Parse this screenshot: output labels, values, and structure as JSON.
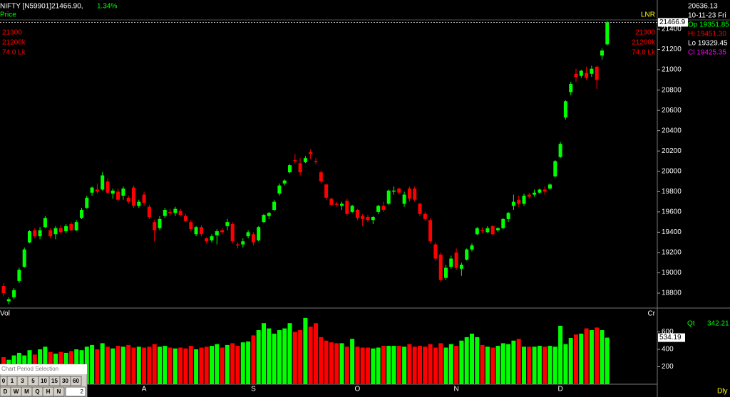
{
  "chart_data": {
    "type": "candlestick",
    "up_color": "#00ff00",
    "down_color": "#ff0000",
    "categories": [
      null,
      null,
      null,
      null,
      null,
      null,
      null,
      null,
      null,
      null,
      null,
      null,
      null,
      null,
      null,
      null,
      null,
      null,
      null,
      null,
      null,
      null,
      null,
      null,
      null,
      null,
      null,
      "A",
      null,
      null,
      null,
      null,
      null,
      null,
      null,
      null,
      null,
      null,
      null,
      null,
      null,
      null,
      null,
      null,
      null,
      null,
      null,
      null,
      "S",
      null,
      null,
      null,
      null,
      null,
      null,
      null,
      null,
      null,
      null,
      null,
      null,
      null,
      null,
      null,
      null,
      null,
      null,
      null,
      "O",
      null,
      null,
      null,
      null,
      null,
      null,
      null,
      null,
      null,
      null,
      null,
      null,
      null,
      null,
      null,
      null,
      null,
      null,
      "N",
      null,
      null,
      null,
      null,
      null,
      null,
      null,
      null,
      null,
      null,
      null,
      null,
      null,
      null,
      null,
      null,
      null,
      null,
      null,
      "D",
      null,
      null,
      null,
      null,
      null,
      null,
      null,
      null,
      null
    ],
    "open": [
      18870,
      18720,
      18760,
      18920,
      19060,
      19300,
      19420,
      19360,
      19450,
      19420,
      19380,
      19440,
      19410,
      19480,
      19420,
      19540,
      19640,
      19790,
      19820,
      19820,
      19900,
      19780,
      19800,
      19760,
      19740,
      19840,
      19660,
      19770,
      19650,
      19500,
      19440,
      19560,
      19600,
      19590,
      19610,
      19560,
      19500,
      19380,
      19450,
      19340,
      19320,
      19370,
      19420,
      19460,
      19480,
      19280,
      19280,
      19360,
      19380,
      19320,
      19500,
      19560,
      19620,
      19780,
      19880,
      19990,
      20110,
      20080,
      20090,
      20190,
      20100,
      19990,
      19870,
      19730,
      19680,
      19660,
      19710,
      19600,
      19620,
      19560,
      19550,
      19520,
      19600,
      19660,
      19680,
      19800,
      19830,
      19680,
      19830,
      19830,
      19680,
      19580,
      19520,
      19280,
      19180,
      18950,
      19060,
      19200,
      19040,
      19130,
      19230,
      19380,
      19420,
      19400,
      19460,
      19420,
      19440,
      19530,
      19660,
      19720,
      19680,
      19770,
      19770,
      19790,
      19820,
      19830,
      19950,
      20140,
      20530,
      20780,
      20960,
      20940,
      20970,
      20960,
      21030,
      21140,
      21250
    ],
    "high": [
      18900,
      18760,
      18850,
      19050,
      19250,
      19420,
      19440,
      19450,
      19560,
      19440,
      19460,
      19470,
      19480,
      19500,
      19520,
      19640,
      19760,
      19850,
      19880,
      19990,
      19930,
      19830,
      19830,
      19850,
      19760,
      19860,
      19720,
      19800,
      19670,
      19520,
      19560,
      19640,
      19630,
      19650,
      19630,
      19580,
      19520,
      19460,
      19470,
      19350,
      19380,
      19430,
      19440,
      19530,
      19500,
      19300,
      19340,
      19420,
      19400,
      19460,
      19580,
      19600,
      19720,
      19880,
      19920,
      20070,
      20170,
      20130,
      20150,
      20220,
      20130,
      20010,
      19880,
      19740,
      19700,
      19700,
      19730,
      19670,
      19630,
      19580,
      19570,
      19560,
      19670,
      19700,
      19820,
      19850,
      19840,
      19800,
      19850,
      19850,
      19690,
      19600,
      19540,
      19300,
      19200,
      19080,
      19170,
      19240,
      19100,
      19240,
      19290,
      19450,
      19450,
      19460,
      19470,
      19450,
      19540,
      19600,
      19770,
      19760,
      19780,
      19790,
      19820,
      19830,
      19850,
      19880,
      20110,
      20290,
      20700,
      20880,
      21010,
      21000,
      21030,
      21040,
      21040,
      21210,
      21480
    ],
    "low": [
      18770,
      18690,
      18740,
      18900,
      19050,
      19290,
      19340,
      19330,
      19440,
      19340,
      19330,
      19380,
      19390,
      19410,
      19410,
      19530,
      19630,
      19760,
      19780,
      19810,
      19780,
      19730,
      19700,
      19720,
      19680,
      19640,
      19640,
      19660,
      19530,
      19310,
      19420,
      19540,
      19560,
      19560,
      19560,
      19500,
      19410,
      19360,
      19360,
      19290,
      19300,
      19280,
      19380,
      19420,
      19290,
      19240,
      19250,
      19340,
      19270,
      19310,
      19490,
      19530,
      19610,
      19760,
      19860,
      19980,
      20080,
      19960,
      20080,
      20120,
      20070,
      19880,
      19720,
      19660,
      19650,
      19620,
      19560,
      19590,
      19520,
      19460,
      19500,
      19480,
      19580,
      19600,
      19670,
      19770,
      19770,
      19650,
      19700,
      19700,
      19560,
      19510,
      19290,
      19120,
      18910,
      18930,
      19040,
      19030,
      18970,
      19120,
      19210,
      19370,
      19390,
      19390,
      19370,
      19400,
      19430,
      19500,
      19620,
      19650,
      19660,
      19730,
      19750,
      19780,
      19770,
      19820,
      19940,
      20130,
      20510,
      20750,
      20880,
      20920,
      20900,
      20930,
      20810,
      21100,
      21240
    ],
    "close": [
      18800,
      18740,
      18830,
      19030,
      19230,
      19410,
      19360,
      19420,
      19540,
      19360,
      19440,
      19400,
      19460,
      19420,
      19500,
      19620,
      19740,
      19840,
      19800,
      19960,
      19790,
      19810,
      19720,
      19830,
      19700,
      19660,
      19700,
      19690,
      19550,
      19420,
      19530,
      19620,
      19590,
      19630,
      19570,
      19510,
      19430,
      19450,
      19380,
      19310,
      19360,
      19410,
      19400,
      19500,
      19310,
      19270,
      19310,
      19400,
      19300,
      19450,
      19570,
      19590,
      19700,
      19860,
      19910,
      20060,
      20100,
      19990,
      20130,
      20170,
      20090,
      19900,
      19740,
      19670,
      19670,
      19680,
      19580,
      19660,
      19540,
      19530,
      19520,
      19550,
      19660,
      19620,
      19810,
      19810,
      19790,
      19770,
      19730,
      19720,
      19580,
      19530,
      19310,
      19140,
      18930,
      19050,
      19140,
      19050,
      19080,
      19230,
      19270,
      19440,
      19410,
      19440,
      19380,
      19440,
      19530,
      19590,
      19700,
      19680,
      19760,
      19750,
      19790,
      19820,
      19800,
      19870,
      20100,
      20270,
      20690,
      20860,
      20930,
      20990,
      20920,
      21010,
      20900,
      21190,
      21466.9
    ],
    "volume": [
      310,
      280,
      330,
      360,
      330,
      390,
      340,
      400,
      430,
      370,
      350,
      370,
      360,
      380,
      400,
      390,
      430,
      450,
      400,
      470,
      430,
      410,
      440,
      430,
      450,
      420,
      430,
      420,
      430,
      460,
      430,
      440,
      420,
      410,
      420,
      410,
      440,
      400,
      420,
      430,
      440,
      460,
      420,
      450,
      470,
      440,
      480,
      490,
      560,
      620,
      700,
      640,
      580,
      620,
      640,
      700,
      600,
      620,
      760,
      660,
      700,
      540,
      500,
      480,
      470,
      470,
      430,
      520,
      430,
      420,
      420,
      410,
      420,
      440,
      440,
      440,
      440,
      430,
      460,
      430,
      440,
      430,
      460,
      420,
      470,
      420,
      460,
      440,
      500,
      540,
      580,
      540,
      450,
      430,
      420,
      440,
      470,
      460,
      500,
      520,
      430,
      430,
      430,
      440,
      430,
      440,
      430,
      670,
      460,
      530,
      570,
      580,
      640,
      620,
      650,
      620,
      534.19
    ],
    "ylim": [
      18660,
      21491
    ],
    "yticks": [
      18800,
      19000,
      19200,
      19400,
      19600,
      19800,
      20000,
      20200,
      20400,
      20600,
      20800,
      21000,
      21200,
      21400
    ],
    "vol_ylim": [
      0,
      857
    ],
    "vol_yticks": [
      200,
      400,
      600
    ],
    "last_price": 21466.9
  },
  "ui": {
    "symbol": "NIFTY [N59901]21466.90,",
    "change": "1.34%",
    "price_label": "Price",
    "left_info": [
      "21300",
      "21200k",
      "74.0 Lk"
    ],
    "right_info": [
      "21300",
      "21200k",
      "74.0 Lk"
    ],
    "lnr": "LNR",
    "info_box": [
      "20636.13",
      "10-11-23 Fri",
      "Op 19351.85",
      "Hi 19451.30",
      "Lo 19329.45",
      "Cl 19425.35"
    ],
    "vol_label": "Vol",
    "cr_label": "Cr",
    "qt_label": "Qt",
    "qt_value": "342.21",
    "dly": "Dly",
    "period_title": "Chart Period Selection",
    "period_row1": [
      "0",
      "1",
      "3",
      "5",
      "10",
      "15",
      "30",
      "60"
    ],
    "period_row2": [
      "D",
      "W",
      "M",
      "Q",
      "H",
      "N"
    ],
    "period_input": "2"
  }
}
